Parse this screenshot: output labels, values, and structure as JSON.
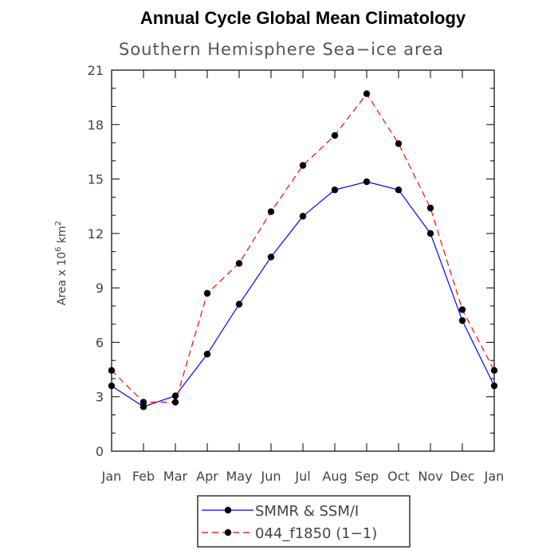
{
  "chart_data": {
    "type": "line",
    "title": "Annual Cycle Global Mean Climatology",
    "subtitle": "Southern Hemisphere Sea−ice area",
    "ylabel_prefix": "Area x 10",
    "ylabel_exp1": "6",
    "ylabel_mid": " km",
    "ylabel_exp2": "2",
    "categories": [
      "Jan",
      "Feb",
      "Mar",
      "Apr",
      "May",
      "Jun",
      "Jul",
      "Aug",
      "Sep",
      "Oct",
      "Nov",
      "Dec",
      "Jan"
    ],
    "ylim": [
      0,
      21
    ],
    "yticks": [
      0,
      3,
      6,
      9,
      12,
      15,
      18,
      21
    ],
    "series": [
      {
        "name": "SMMR & SSM/I",
        "color": "#0000ff",
        "dash": "solid",
        "values": [
          3.6,
          2.45,
          3.05,
          5.35,
          8.1,
          10.7,
          12.95,
          14.4,
          14.85,
          14.4,
          12.0,
          7.2,
          3.6
        ]
      },
      {
        "name": "044_f1850 (1−1)",
        "color": "#ff0000",
        "dash": "dashed",
        "values": [
          4.45,
          2.7,
          2.7,
          8.7,
          10.35,
          13.2,
          15.75,
          17.4,
          19.7,
          16.95,
          13.4,
          7.8,
          4.45
        ]
      }
    ],
    "legend_position": "bottom-center"
  }
}
